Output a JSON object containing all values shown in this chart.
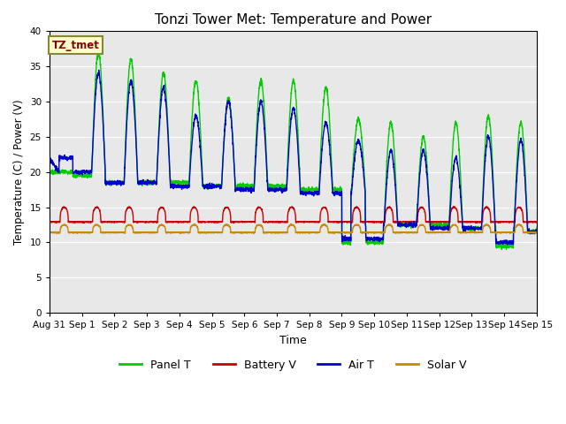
{
  "title": "Tonzi Tower Met: Temperature and Power",
  "xlabel": "Time",
  "ylabel": "Temperature (C) / Power (V)",
  "annotation": "TZ_tmet",
  "ylim": [
    0,
    40
  ],
  "yticks": [
    0,
    5,
    10,
    15,
    20,
    25,
    30,
    35,
    40
  ],
  "xtick_labels": [
    "Aug 31",
    "Sep 1",
    "Sep 2",
    "Sep 3",
    "Sep 4",
    "Sep 5",
    "Sep 6",
    "Sep 7",
    "Sep 8",
    "Sep 9",
    "Sep 10",
    "Sep 11",
    "Sep 12",
    "Sep 13",
    "Sep 14",
    "Sep 15"
  ],
  "colors": {
    "panel_t": "#00cc00",
    "battery_v": "#cc0000",
    "air_t": "#0000cc",
    "solar_v": "#cc8800",
    "background": "#e8e8e8",
    "annotation_bg": "#ffffcc",
    "annotation_border": "#888833",
    "annotation_text": "#880000"
  },
  "panel_peaks": [
    20.0,
    37.0,
    36.0,
    34.0,
    33.0,
    30.5,
    33.0,
    33.0,
    32.0,
    27.5,
    27.0,
    25.0,
    27.0,
    28.0,
    27.0
  ],
  "panel_night_base": 12.5,
  "panel_night_values": [
    20.0,
    19.5,
    18.5,
    18.5,
    18.5,
    18.0,
    18.0,
    18.0,
    17.5,
    17.5,
    12.5,
    12.5,
    12.5,
    12.0,
    12.0,
    11.5
  ],
  "air_peaks": [
    22.0,
    34.0,
    33.0,
    32.0,
    28.0,
    30.0,
    30.0,
    29.0,
    27.0,
    24.5,
    23.0,
    23.0,
    22.0,
    25.0,
    24.5
  ],
  "air_night_values": [
    22.0,
    20.0,
    18.5,
    18.5,
    18.0,
    18.0,
    17.5,
    17.5,
    17.0,
    17.0,
    12.5,
    12.5,
    12.0,
    12.0,
    11.5,
    11.5
  ],
  "battery_base": 12.9,
  "battery_peak": 15.0,
  "solar_base": 11.4,
  "solar_peak": 12.5,
  "n_days": 15
}
